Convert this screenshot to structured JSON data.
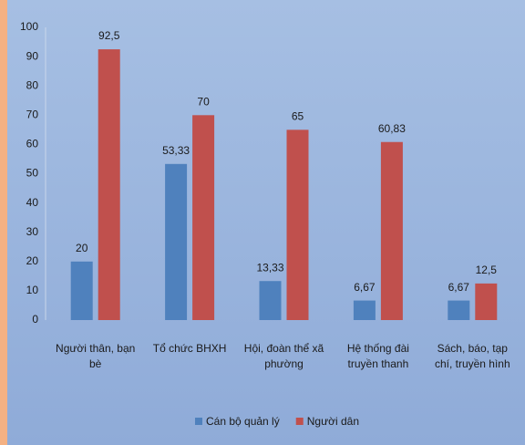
{
  "chart_data": {
    "type": "bar",
    "categories": [
      "Người thân, bạn bè",
      "Tổ chức BHXH",
      "Hội, đoàn thể xã phường",
      "Hệ thống đài truyền thanh",
      "Sách, báo, tạp chí, truyền hình"
    ],
    "series": [
      {
        "name": "Cán bộ quản lý",
        "color": "#4f81bd",
        "values": [
          20,
          53.33,
          13.33,
          6.67,
          6.67
        ],
        "value_labels": [
          "20",
          "53,33",
          "13,33",
          "6,67",
          "6,67"
        ]
      },
      {
        "name": "Người dân",
        "color": "#c0504d",
        "values": [
          92.5,
          70,
          65,
          60.83,
          12.5
        ],
        "value_labels": [
          "92,5",
          "70",
          "65",
          "60,83",
          "12,5"
        ]
      }
    ],
    "ylim": [
      0,
      100
    ],
    "yticks": [
      0,
      10,
      20,
      30,
      40,
      50,
      60,
      70,
      80,
      90,
      100
    ],
    "grid": false,
    "legend": "bottom"
  }
}
